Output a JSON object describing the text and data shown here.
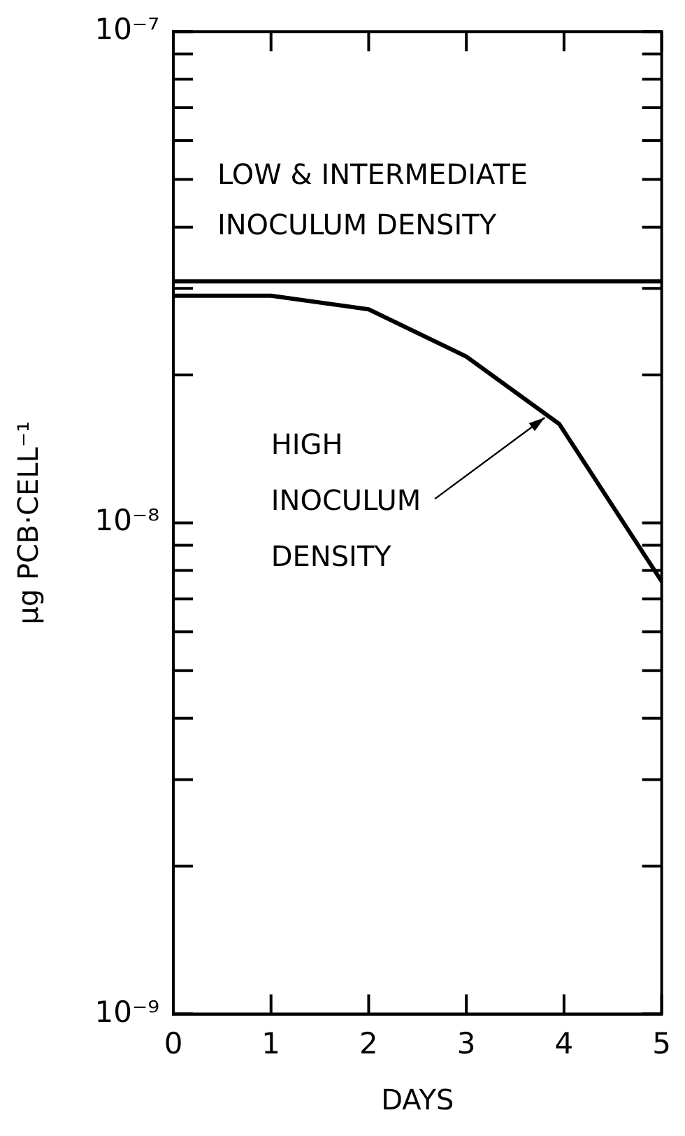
{
  "chart_data": {
    "type": "line",
    "xlabel": "DAYS",
    "ylabel": "μg PCB·CELL⁻¹",
    "log": "y",
    "series": [
      {
        "name": "LOW & INTERMEDIATE INOCULUM DENSITY",
        "color": "#000000",
        "x": [
          0,
          5
        ],
        "values": [
          3.1e-08,
          3.1e-08
        ]
      },
      {
        "name": "HIGH INOCULUM DENSITY",
        "color": "#000000",
        "x": [
          0,
          1,
          2,
          3,
          3.95,
          5
        ],
        "values": [
          2.9e-08,
          2.9e-08,
          2.72e-08,
          2.18e-08,
          1.59e-08,
          7.6e-09
        ]
      }
    ],
    "xlim": [
      0,
      5
    ],
    "xticks": [
      0,
      1,
      2,
      3,
      4,
      5
    ],
    "ylim": [
      1e-09,
      1e-07
    ],
    "yticks": [
      {
        "value": 1e-09,
        "label": "10⁻⁹"
      },
      {
        "value": 2e-09,
        "label": null
      },
      {
        "value": 3e-09,
        "label": null
      },
      {
        "value": 4e-09,
        "label": null
      },
      {
        "value": 5e-09,
        "label": null
      },
      {
        "value": 6e-09,
        "label": null
      },
      {
        "value": 7e-09,
        "label": null
      },
      {
        "value": 8e-09,
        "label": null
      },
      {
        "value": 9e-09,
        "label": null
      },
      {
        "value": 1e-08,
        "label": "10⁻⁸"
      },
      {
        "value": 2e-08,
        "label": null
      },
      {
        "value": 3e-08,
        "label": null
      },
      {
        "value": 4e-08,
        "label": null
      },
      {
        "value": 5e-08,
        "label": null
      },
      {
        "value": 6e-08,
        "label": null
      },
      {
        "value": 7e-08,
        "label": null
      },
      {
        "value": 8e-08,
        "label": null
      },
      {
        "value": 9e-08,
        "label": null
      },
      {
        "value": 1e-07,
        "label": "10⁻⁷"
      }
    ],
    "grid": false,
    "marker": "none",
    "line_style": "solid"
  }
}
